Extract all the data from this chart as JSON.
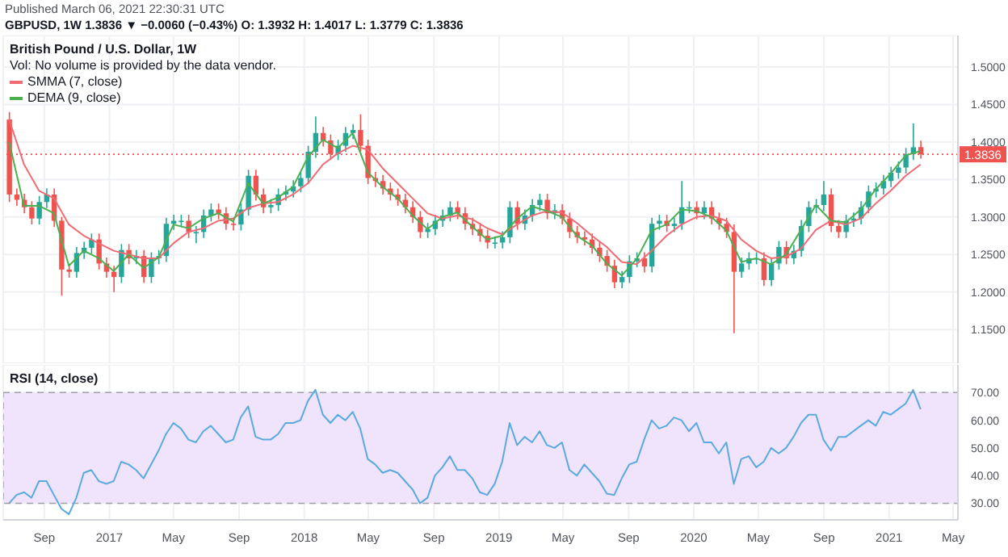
{
  "chart_data": [
    {
      "type": "candlestick",
      "title": "British Pound / U.S. Dollar, 1W",
      "subtitle": "GBPUSD, 1W 1.3836 ▼ −0.0060 (−0.43%) O: 1.3932 H: 1.4017 L: 1.3779 C: 1.3836",
      "annotations": [
        "Published March 06, 2021 22:30:31 UTC",
        "Vol: No volume is provided by the data vendor."
      ],
      "x": [
        "2016-06-27",
        "2016-07-11",
        "2016-07-25",
        "2016-08-08",
        "2016-08-22",
        "2016-09-05",
        "2016-09-19",
        "2016-10-03",
        "2016-10-17",
        "2016-10-31",
        "2016-11-14",
        "2016-11-28",
        "2016-12-12",
        "2016-12-26",
        "2017-01-09",
        "2017-01-23",
        "2017-02-06",
        "2017-02-20",
        "2017-03-06",
        "2017-03-20",
        "2017-04-03",
        "2017-04-17",
        "2017-05-01",
        "2017-05-15",
        "2017-05-29",
        "2017-06-12",
        "2017-06-26",
        "2017-07-10",
        "2017-07-24",
        "2017-08-07",
        "2017-08-21",
        "2017-09-04",
        "2017-09-18",
        "2017-10-02",
        "2017-10-16",
        "2017-10-30",
        "2017-11-13",
        "2017-11-27",
        "2017-12-11",
        "2017-12-25",
        "2018-01-08",
        "2018-01-22",
        "2018-02-05",
        "2018-02-19",
        "2018-03-05",
        "2018-03-19",
        "2018-04-02",
        "2018-04-16",
        "2018-04-30",
        "2018-05-14",
        "2018-05-28",
        "2018-06-11",
        "2018-06-25",
        "2018-07-09",
        "2018-07-23",
        "2018-08-06",
        "2018-08-20",
        "2018-09-03",
        "2018-09-17",
        "2018-10-01",
        "2018-10-15",
        "2018-10-29",
        "2018-11-12",
        "2018-11-26",
        "2018-12-10",
        "2018-12-24",
        "2019-01-07",
        "2019-01-21",
        "2019-02-04",
        "2019-02-18",
        "2019-03-04",
        "2019-03-18",
        "2019-04-01",
        "2019-04-15",
        "2019-04-29",
        "2019-05-13",
        "2019-05-27",
        "2019-06-10",
        "2019-06-24",
        "2019-07-08",
        "2019-07-22",
        "2019-08-05",
        "2019-08-19",
        "2019-09-02",
        "2019-09-16",
        "2019-09-30",
        "2019-10-14",
        "2019-10-28",
        "2019-11-11",
        "2019-11-25",
        "2019-12-09",
        "2019-12-23",
        "2020-01-06",
        "2020-01-20",
        "2020-02-03",
        "2020-02-17",
        "2020-03-02",
        "2020-03-16",
        "2020-03-30",
        "2020-04-13",
        "2020-04-27",
        "2020-05-11",
        "2020-05-25",
        "2020-06-08",
        "2020-06-22",
        "2020-07-06",
        "2020-07-20",
        "2020-08-03",
        "2020-08-17",
        "2020-08-31",
        "2020-09-14",
        "2020-09-28",
        "2020-10-12",
        "2020-10-26",
        "2020-11-09",
        "2020-11-23",
        "2020-12-07",
        "2020-12-21",
        "2021-01-04",
        "2021-01-18",
        "2021-02-01",
        "2021-02-15",
        "2021-03-01"
      ],
      "ohlc": [
        [
          1.43,
          1.44,
          1.32,
          1.33
        ],
        [
          1.33,
          1.338,
          1.315,
          1.323
        ],
        [
          1.323,
          1.331,
          1.305,
          1.313
        ],
        [
          1.313,
          1.321,
          1.29,
          1.298
        ],
        [
          1.298,
          1.328,
          1.29,
          1.32
        ],
        [
          1.32,
          1.338,
          1.312,
          1.33
        ],
        [
          1.33,
          1.338,
          1.287,
          1.295
        ],
        [
          1.295,
          1.3,
          1.195,
          1.23
        ],
        [
          1.23,
          1.238,
          1.219,
          1.227
        ],
        [
          1.227,
          1.26,
          1.219,
          1.252
        ],
        [
          1.252,
          1.267,
          1.244,
          1.259
        ],
        [
          1.259,
          1.278,
          1.251,
          1.27
        ],
        [
          1.27,
          1.278,
          1.23,
          1.238
        ],
        [
          1.238,
          1.246,
          1.219,
          1.227
        ],
        [
          1.227,
          1.235,
          1.2,
          1.22
        ],
        [
          1.22,
          1.264,
          1.212,
          1.256
        ],
        [
          1.256,
          1.264,
          1.237,
          1.245
        ],
        [
          1.245,
          1.256,
          1.237,
          1.248
        ],
        [
          1.248,
          1.256,
          1.212,
          1.22
        ],
        [
          1.22,
          1.253,
          1.212,
          1.245
        ],
        [
          1.245,
          1.256,
          1.237,
          1.248
        ],
        [
          1.248,
          1.299,
          1.24,
          1.291
        ],
        [
          1.291,
          1.303,
          1.283,
          1.295
        ],
        [
          1.295,
          1.303,
          1.287,
          1.295
        ],
        [
          1.295,
          1.303,
          1.272,
          1.28
        ],
        [
          1.28,
          1.288,
          1.265,
          1.28
        ],
        [
          1.28,
          1.31,
          1.272,
          1.302
        ],
        [
          1.302,
          1.318,
          1.294,
          1.31
        ],
        [
          1.31,
          1.318,
          1.297,
          1.305
        ],
        [
          1.305,
          1.313,
          1.283,
          1.291
        ],
        [
          1.291,
          1.299,
          1.282,
          1.29
        ],
        [
          1.29,
          1.318,
          1.282,
          1.31
        ],
        [
          1.31,
          1.363,
          1.302,
          1.355
        ],
        [
          1.355,
          1.363,
          1.322,
          1.33
        ],
        [
          1.33,
          1.338,
          1.305,
          1.313
        ],
        [
          1.313,
          1.324,
          1.305,
          1.316
        ],
        [
          1.316,
          1.338,
          1.308,
          1.33
        ],
        [
          1.33,
          1.342,
          1.322,
          1.334
        ],
        [
          1.334,
          1.349,
          1.326,
          1.341
        ],
        [
          1.341,
          1.36,
          1.333,
          1.352
        ],
        [
          1.352,
          1.395,
          1.344,
          1.387
        ],
        [
          1.387,
          1.434,
          1.379,
          1.412
        ],
        [
          1.412,
          1.42,
          1.394,
          1.402
        ],
        [
          1.402,
          1.41,
          1.376,
          1.384
        ],
        [
          1.384,
          1.403,
          1.376,
          1.395
        ],
        [
          1.395,
          1.42,
          1.387,
          1.412
        ],
        [
          1.412,
          1.424,
          1.404,
          1.416
        ],
        [
          1.416,
          1.437,
          1.387,
          1.395
        ],
        [
          1.395,
          1.403,
          1.344,
          1.352
        ],
        [
          1.352,
          1.36,
          1.34,
          1.348
        ],
        [
          1.348,
          1.356,
          1.33,
          1.338
        ],
        [
          1.338,
          1.346,
          1.322,
          1.33
        ],
        [
          1.33,
          1.338,
          1.315,
          1.323
        ],
        [
          1.323,
          1.331,
          1.305,
          1.313
        ],
        [
          1.313,
          1.321,
          1.292,
          1.3
        ],
        [
          1.3,
          1.308,
          1.272,
          1.28
        ],
        [
          1.28,
          1.292,
          1.272,
          1.284
        ],
        [
          1.284,
          1.303,
          1.276,
          1.295
        ],
        [
          1.295,
          1.31,
          1.287,
          1.302
        ],
        [
          1.302,
          1.321,
          1.294,
          1.313
        ],
        [
          1.313,
          1.321,
          1.297,
          1.305
        ],
        [
          1.305,
          1.313,
          1.283,
          1.291
        ],
        [
          1.291,
          1.299,
          1.276,
          1.284
        ],
        [
          1.284,
          1.292,
          1.267,
          1.275
        ],
        [
          1.275,
          1.283,
          1.258,
          1.266
        ],
        [
          1.266,
          1.274,
          1.258,
          1.266
        ],
        [
          1.266,
          1.281,
          1.258,
          1.273
        ],
        [
          1.273,
          1.321,
          1.265,
          1.313
        ],
        [
          1.313,
          1.321,
          1.283,
          1.291
        ],
        [
          1.291,
          1.31,
          1.283,
          1.302
        ],
        [
          1.302,
          1.324,
          1.294,
          1.316
        ],
        [
          1.316,
          1.331,
          1.308,
          1.323
        ],
        [
          1.323,
          1.331,
          1.297,
          1.305
        ],
        [
          1.305,
          1.317,
          1.297,
          1.309
        ],
        [
          1.309,
          1.317,
          1.29,
          1.298
        ],
        [
          1.298,
          1.306,
          1.272,
          1.28
        ],
        [
          1.28,
          1.288,
          1.265,
          1.273
        ],
        [
          1.273,
          1.281,
          1.262,
          1.27
        ],
        [
          1.27,
          1.278,
          1.251,
          1.259
        ],
        [
          1.259,
          1.267,
          1.24,
          1.248
        ],
        [
          1.248,
          1.256,
          1.227,
          1.235
        ],
        [
          1.235,
          1.243,
          1.205,
          1.213
        ],
        [
          1.213,
          1.228,
          1.205,
          1.22
        ],
        [
          1.22,
          1.249,
          1.212,
          1.241
        ],
        [
          1.241,
          1.253,
          1.233,
          1.245
        ],
        [
          1.245,
          1.253,
          1.226,
          1.234
        ],
        [
          1.234,
          1.299,
          1.226,
          1.291
        ],
        [
          1.291,
          1.303,
          1.283,
          1.295
        ],
        [
          1.295,
          1.303,
          1.28,
          1.288
        ],
        [
          1.288,
          1.299,
          1.28,
          1.291
        ],
        [
          1.291,
          1.348,
          1.283,
          1.313
        ],
        [
          1.313,
          1.321,
          1.305,
          1.313
        ],
        [
          1.313,
          1.321,
          1.297,
          1.305
        ],
        [
          1.305,
          1.321,
          1.297,
          1.313
        ],
        [
          1.313,
          1.321,
          1.29,
          1.298
        ],
        [
          1.298,
          1.306,
          1.283,
          1.291
        ],
        [
          1.291,
          1.299,
          1.272,
          1.28
        ],
        [
          1.28,
          1.29,
          1.145,
          1.227
        ],
        [
          1.227,
          1.246,
          1.219,
          1.238
        ],
        [
          1.238,
          1.253,
          1.23,
          1.245
        ],
        [
          1.245,
          1.253,
          1.237,
          1.245
        ],
        [
          1.245,
          1.253,
          1.208,
          1.216
        ],
        [
          1.216,
          1.246,
          1.208,
          1.238
        ],
        [
          1.238,
          1.268,
          1.23,
          1.26
        ],
        [
          1.26,
          1.268,
          1.237,
          1.245
        ],
        [
          1.245,
          1.263,
          1.237,
          1.255
        ],
        [
          1.255,
          1.296,
          1.247,
          1.288
        ],
        [
          1.288,
          1.321,
          1.28,
          1.313
        ],
        [
          1.313,
          1.324,
          1.305,
          1.316
        ],
        [
          1.316,
          1.348,
          1.308,
          1.33
        ],
        [
          1.33,
          1.338,
          1.28,
          1.288
        ],
        [
          1.288,
          1.296,
          1.272,
          1.28
        ],
        [
          1.28,
          1.303,
          1.272,
          1.295
        ],
        [
          1.295,
          1.306,
          1.287,
          1.298
        ],
        [
          1.298,
          1.321,
          1.29,
          1.313
        ],
        [
          1.313,
          1.342,
          1.305,
          1.334
        ],
        [
          1.334,
          1.346,
          1.326,
          1.338
        ],
        [
          1.338,
          1.356,
          1.33,
          1.348
        ],
        [
          1.348,
          1.367,
          1.34,
          1.359
        ],
        [
          1.359,
          1.374,
          1.351,
          1.366
        ],
        [
          1.366,
          1.392,
          1.358,
          1.384
        ],
        [
          1.384,
          1.425,
          1.376,
          1.393
        ],
        [
          1.3932,
          1.4017,
          1.3779,
          1.3836
        ]
      ],
      "colors": [
        "#ef5350",
        "#ef5350",
        "#ef5350",
        "#ef5350",
        "#26a69a",
        "#26a69a",
        "#ef5350",
        "#ef5350",
        "#ef5350",
        "#26a69a",
        "#26a69a",
        "#26a69a",
        "#ef5350",
        "#ef5350",
        "#ef5350",
        "#26a69a",
        "#ef5350",
        "#26a69a",
        "#ef5350",
        "#26a69a",
        "#26a69a",
        "#26a69a",
        "#26a69a",
        "#26a69a",
        "#ef5350",
        "#26a69a",
        "#26a69a",
        "#26a69a",
        "#ef5350",
        "#ef5350",
        "#ef5350",
        "#26a69a",
        "#26a69a",
        "#ef5350",
        "#ef5350",
        "#26a69a",
        "#26a69a",
        "#26a69a",
        "#26a69a",
        "#26a69a",
        "#26a69a",
        "#26a69a",
        "#ef5350",
        "#ef5350",
        "#26a69a",
        "#26a69a",
        "#26a69a",
        "#ef5350",
        "#ef5350",
        "#ef5350",
        "#ef5350",
        "#ef5350",
        "#ef5350",
        "#ef5350",
        "#ef5350",
        "#ef5350",
        "#26a69a",
        "#26a69a",
        "#26a69a",
        "#26a69a",
        "#ef5350",
        "#ef5350",
        "#ef5350",
        "#ef5350",
        "#ef5350",
        "#26a69a",
        "#26a69a",
        "#26a69a",
        "#ef5350",
        "#26a69a",
        "#26a69a",
        "#26a69a",
        "#ef5350",
        "#26a69a",
        "#ef5350",
        "#ef5350",
        "#ef5350",
        "#ef5350",
        "#ef5350",
        "#ef5350",
        "#ef5350",
        "#ef5350",
        "#26a69a",
        "#26a69a",
        "#26a69a",
        "#ef5350",
        "#26a69a",
        "#26a69a",
        "#ef5350",
        "#26a69a",
        "#26a69a",
        "#26a69a",
        "#ef5350",
        "#26a69a",
        "#ef5350",
        "#ef5350",
        "#ef5350",
        "#ef5350",
        "#26a69a",
        "#26a69a",
        "#26a69a",
        "#ef5350",
        "#26a69a",
        "#26a69a",
        "#ef5350",
        "#26a69a",
        "#26a69a",
        "#26a69a",
        "#26a69a",
        "#26a69a",
        "#ef5350",
        "#ef5350",
        "#26a69a",
        "#26a69a",
        "#26a69a",
        "#26a69a",
        "#26a69a",
        "#26a69a",
        "#26a69a",
        "#26a69a",
        "#26a69a",
        "#26a69a",
        "#ef5350"
      ],
      "series": [
        {
          "type": "line",
          "name": "SMMA (7, close)",
          "color": "#f06b73",
          "x": [
            "2016-06-27",
            "2016-07-25",
            "2016-08-22",
            "2016-09-19",
            "2016-10-17",
            "2016-11-14",
            "2016-12-12",
            "2017-01-09",
            "2017-02-06",
            "2017-03-06",
            "2017-04-03",
            "2017-05-01",
            "2017-05-29",
            "2017-06-26",
            "2017-07-24",
            "2017-08-21",
            "2017-09-18",
            "2017-10-16",
            "2017-11-13",
            "2017-12-11",
            "2018-01-08",
            "2018-02-05",
            "2018-03-05",
            "2018-04-02",
            "2018-04-30",
            "2018-05-28",
            "2018-06-25",
            "2018-07-23",
            "2018-08-20",
            "2018-09-17",
            "2018-10-15",
            "2018-11-12",
            "2018-12-10",
            "2019-01-07",
            "2019-02-04",
            "2019-03-04",
            "2019-04-01",
            "2019-04-29",
            "2019-05-27",
            "2019-06-24",
            "2019-07-22",
            "2019-08-19",
            "2019-09-16",
            "2019-10-14",
            "2019-11-11",
            "2019-12-09",
            "2020-01-06",
            "2020-02-03",
            "2020-03-02",
            "2020-03-30",
            "2020-04-27",
            "2020-05-25",
            "2020-06-22",
            "2020-07-20",
            "2020-08-17",
            "2020-09-14",
            "2020-10-12",
            "2020-11-09",
            "2020-12-07",
            "2021-01-04",
            "2021-02-01",
            "2021-03-01"
          ],
          "values": [
            1.43,
            1.37,
            1.335,
            1.325,
            1.29,
            1.275,
            1.265,
            1.255,
            1.25,
            1.245,
            1.245,
            1.265,
            1.28,
            1.285,
            1.295,
            1.298,
            1.312,
            1.318,
            1.32,
            1.33,
            1.345,
            1.37,
            1.385,
            1.395,
            1.39,
            1.365,
            1.345,
            1.325,
            1.305,
            1.298,
            1.302,
            1.297,
            1.285,
            1.277,
            1.29,
            1.302,
            1.308,
            1.306,
            1.292,
            1.275,
            1.26,
            1.24,
            1.237,
            1.255,
            1.275,
            1.29,
            1.3,
            1.302,
            1.295,
            1.27,
            1.255,
            1.245,
            1.247,
            1.258,
            1.283,
            1.295,
            1.29,
            1.298,
            1.318,
            1.335,
            1.355,
            1.37
          ]
        },
        {
          "type": "line",
          "name": "DEMA (9, close)",
          "color": "#4caf50",
          "x": [
            "2016-06-27",
            "2016-07-25",
            "2016-08-22",
            "2016-09-19",
            "2016-10-17",
            "2016-11-14",
            "2016-12-12",
            "2017-01-09",
            "2017-02-06",
            "2017-03-06",
            "2017-04-03",
            "2017-05-01",
            "2017-05-29",
            "2017-06-26",
            "2017-07-24",
            "2017-08-21",
            "2017-09-18",
            "2017-10-16",
            "2017-11-13",
            "2017-12-11",
            "2018-01-08",
            "2018-02-05",
            "2018-03-05",
            "2018-04-02",
            "2018-04-30",
            "2018-05-28",
            "2018-06-25",
            "2018-07-23",
            "2018-08-20",
            "2018-09-17",
            "2018-10-15",
            "2018-11-12",
            "2018-12-10",
            "2019-01-07",
            "2019-02-04",
            "2019-03-04",
            "2019-04-01",
            "2019-04-29",
            "2019-05-27",
            "2019-06-24",
            "2019-07-22",
            "2019-08-19",
            "2019-09-16",
            "2019-10-14",
            "2019-11-11",
            "2019-12-09",
            "2020-01-06",
            "2020-02-03",
            "2020-03-02",
            "2020-03-30",
            "2020-04-27",
            "2020-05-25",
            "2020-06-22",
            "2020-07-20",
            "2020-08-17",
            "2020-09-14",
            "2020-10-12",
            "2020-11-09",
            "2020-12-07",
            "2021-01-04",
            "2021-02-01",
            "2021-03-01"
          ],
          "values": [
            1.4,
            1.315,
            1.315,
            1.305,
            1.235,
            1.255,
            1.245,
            1.228,
            1.25,
            1.232,
            1.246,
            1.29,
            1.285,
            1.298,
            1.305,
            1.294,
            1.345,
            1.318,
            1.326,
            1.34,
            1.38,
            1.403,
            1.392,
            1.412,
            1.36,
            1.34,
            1.325,
            1.302,
            1.284,
            1.3,
            1.306,
            1.287,
            1.27,
            1.275,
            1.298,
            1.314,
            1.308,
            1.3,
            1.275,
            1.262,
            1.238,
            1.222,
            1.244,
            1.282,
            1.29,
            1.31,
            1.308,
            1.3,
            1.282,
            1.24,
            1.245,
            1.237,
            1.25,
            1.283,
            1.316,
            1.295,
            1.293,
            1.31,
            1.337,
            1.358,
            1.382,
            1.388
          ]
        }
      ],
      "xlim": [
        "2016-06-16",
        "2021-05-10"
      ],
      "xticks": [
        {
          "value": "2016-09-01",
          "label": null
        },
        {
          "value": "2017-01-01",
          "label": null
        },
        {
          "value": "2017-05-01",
          "label": null
        },
        {
          "value": "2017-09-01",
          "label": null
        },
        {
          "value": "2018-01-01",
          "label": null
        },
        {
          "value": "2018-05-01",
          "label": null
        },
        {
          "value": "2018-09-01",
          "label": null
        },
        {
          "value": "2019-01-01",
          "label": null
        },
        {
          "value": "2019-05-01",
          "label": null
        },
        {
          "value": "2019-09-01",
          "label": null
        },
        {
          "value": "2020-01-01",
          "label": null
        },
        {
          "value": "2020-05-01",
          "label": null
        },
        {
          "value": "2020-09-01",
          "label": null
        },
        {
          "value": "2021-01-01",
          "label": null
        },
        {
          "value": "2021-05-01",
          "label": null
        }
      ],
      "ylim": [
        1.105,
        1.542
      ],
      "yticks": [
        {
          "value": 1.15,
          "label": "1.1500"
        },
        {
          "value": 1.2,
          "label": "1.2000"
        },
        {
          "value": 1.25,
          "label": "1.2500"
        },
        {
          "value": 1.3,
          "label": "1.3000"
        },
        {
          "value": 1.35,
          "label": "1.3500"
        },
        {
          "value": 1.4,
          "label": "1.4000"
        },
        {
          "value": 1.45,
          "label": "1.4500"
        },
        {
          "value": 1.5,
          "label": "1.5000"
        }
      ],
      "ref_lines": [
        {
          "axis": "y",
          "value": 1.3836,
          "label": "1.3836",
          "color": "#ef5350",
          "line_style": "dotted"
        }
      ],
      "tick_labels": "y",
      "grid": true,
      "legend": "top left",
      "marker": "none",
      "line_style": "solid"
    },
    {
      "type": "line",
      "title": "RSI (14, close)",
      "x": [
        "2016-06-27",
        "2016-07-11",
        "2016-07-25",
        "2016-08-08",
        "2016-08-22",
        "2016-09-05",
        "2016-09-19",
        "2016-10-03",
        "2016-10-17",
        "2016-10-31",
        "2016-11-14",
        "2016-11-28",
        "2016-12-12",
        "2016-12-26",
        "2017-01-09",
        "2017-01-23",
        "2017-02-06",
        "2017-02-20",
        "2017-03-06",
        "2017-03-20",
        "2017-04-03",
        "2017-04-17",
        "2017-05-01",
        "2017-05-15",
        "2017-05-29",
        "2017-06-12",
        "2017-06-26",
        "2017-07-10",
        "2017-07-24",
        "2017-08-07",
        "2017-08-21",
        "2017-09-04",
        "2017-09-18",
        "2017-10-02",
        "2017-10-16",
        "2017-10-30",
        "2017-11-13",
        "2017-11-27",
        "2017-12-11",
        "2017-12-25",
        "2018-01-08",
        "2018-01-22",
        "2018-02-05",
        "2018-02-19",
        "2018-03-05",
        "2018-03-19",
        "2018-04-02",
        "2018-04-16",
        "2018-04-30",
        "2018-05-14",
        "2018-05-28",
        "2018-06-11",
        "2018-06-25",
        "2018-07-09",
        "2018-07-23",
        "2018-08-06",
        "2018-08-20",
        "2018-09-03",
        "2018-09-17",
        "2018-10-01",
        "2018-10-15",
        "2018-10-29",
        "2018-11-12",
        "2018-11-26",
        "2018-12-10",
        "2018-12-24",
        "2019-01-07",
        "2019-01-21",
        "2019-02-04",
        "2019-02-18",
        "2019-03-04",
        "2019-03-18",
        "2019-04-01",
        "2019-04-15",
        "2019-04-29",
        "2019-05-13",
        "2019-05-27",
        "2019-06-10",
        "2019-06-24",
        "2019-07-08",
        "2019-07-22",
        "2019-08-05",
        "2019-08-19",
        "2019-09-02",
        "2019-09-16",
        "2019-09-30",
        "2019-10-14",
        "2019-10-28",
        "2019-11-11",
        "2019-11-25",
        "2019-12-09",
        "2019-12-23",
        "2020-01-06",
        "2020-01-20",
        "2020-02-03",
        "2020-02-17",
        "2020-03-02",
        "2020-03-16",
        "2020-03-30",
        "2020-04-13",
        "2020-04-27",
        "2020-05-11",
        "2020-05-25",
        "2020-06-08",
        "2020-06-22",
        "2020-07-06",
        "2020-07-20",
        "2020-08-03",
        "2020-08-17",
        "2020-08-31",
        "2020-09-14",
        "2020-09-28",
        "2020-10-12",
        "2020-10-26",
        "2020-11-09",
        "2020-11-23",
        "2020-12-07",
        "2020-12-21",
        "2021-01-04",
        "2021-01-18",
        "2021-02-01",
        "2021-02-15",
        "2021-03-01"
      ],
      "series": [
        {
          "color": "#5aaae0",
          "values": [
            30,
            33,
            34,
            32,
            38,
            38,
            33,
            28,
            26,
            32,
            41,
            42,
            38,
            37,
            38,
            45,
            44,
            42,
            39,
            44,
            49,
            55,
            59,
            57,
            53,
            52,
            56,
            58,
            55,
            52,
            53,
            61,
            65,
            54,
            53,
            53,
            55,
            59,
            59,
            60,
            67,
            71,
            62,
            59,
            62,
            60,
            63,
            57,
            46,
            44,
            41,
            42,
            41,
            38,
            35,
            30,
            32,
            40,
            43,
            47,
            42,
            42,
            39,
            34,
            33,
            37,
            45,
            59,
            51,
            54,
            52,
            56,
            51,
            50,
            52,
            42,
            40,
            44,
            41,
            38,
            33.5,
            33,
            39,
            44,
            45,
            53,
            60,
            57,
            58,
            61,
            60,
            56,
            59,
            52,
            52,
            48,
            52,
            37,
            46,
            47,
            43,
            45,
            50,
            48,
            50,
            54,
            59,
            62,
            62,
            53,
            49,
            54,
            54,
            56,
            58,
            60,
            58,
            63,
            62,
            64,
            66,
            71,
            64
          ]
        }
      ],
      "xlim": [
        "2016-06-16",
        "2021-05-10"
      ],
      "xticks": [
        {
          "value": "2016-09-01",
          "label": "Sep"
        },
        {
          "value": "2017-01-01",
          "label": "2017"
        },
        {
          "value": "2017-05-01",
          "label": "May"
        },
        {
          "value": "2017-09-01",
          "label": "Sep"
        },
        {
          "value": "2018-01-01",
          "label": "2018"
        },
        {
          "value": "2018-05-01",
          "label": "May"
        },
        {
          "value": "2018-09-01",
          "label": "Sep"
        },
        {
          "value": "2019-01-01",
          "label": "2019"
        },
        {
          "value": "2019-05-01",
          "label": "May"
        },
        {
          "value": "2019-09-01",
          "label": "Sep"
        },
        {
          "value": "2020-01-01",
          "label": "2020"
        },
        {
          "value": "2020-05-01",
          "label": "May"
        },
        {
          "value": "2020-09-01",
          "label": "Sep"
        },
        {
          "value": "2021-01-01",
          "label": "2021"
        },
        {
          "value": "2021-05-01",
          "label": "May"
        }
      ],
      "ylim": [
        24,
        80
      ],
      "yticks": [
        {
          "value": 30,
          "label": "30.00"
        },
        {
          "value": 40,
          "label": "40.00"
        },
        {
          "value": 50,
          "label": "50.00"
        },
        {
          "value": 60,
          "label": "60.00"
        },
        {
          "value": 70,
          "label": "70.00"
        }
      ],
      "bands": [
        {
          "axis": "y",
          "from": 30,
          "to": 70,
          "color": "#efe4fc"
        }
      ],
      "grid": true,
      "marker": "none",
      "line_style": "solid"
    }
  ]
}
